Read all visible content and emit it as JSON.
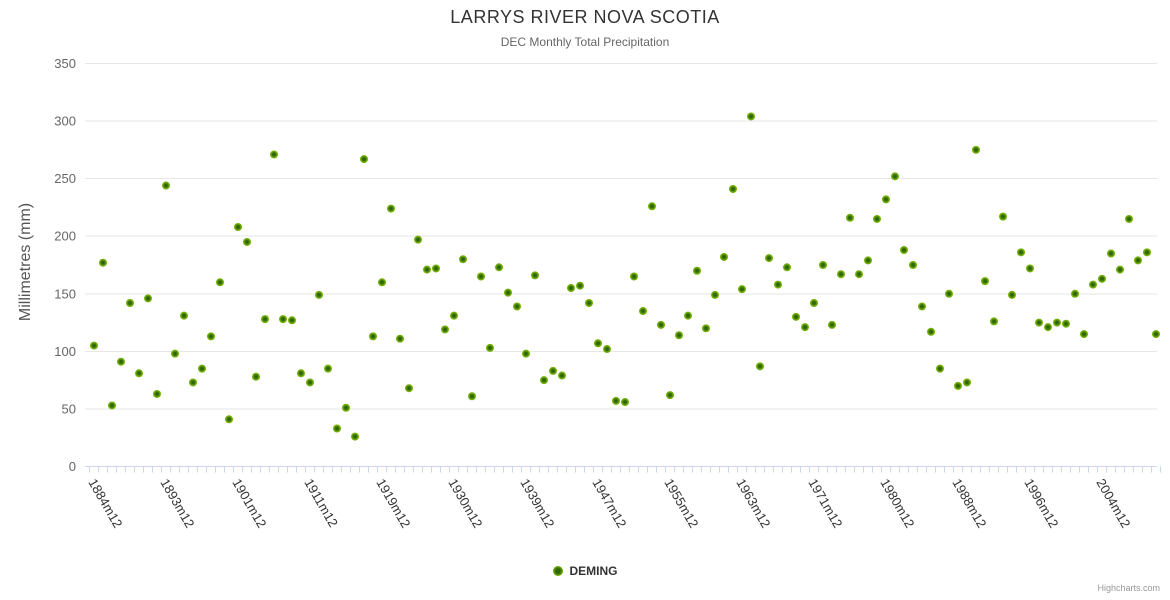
{
  "header": {
    "title": "LARRYS RIVER NOVA SCOTIA",
    "subtitle": "DEC Monthly Total Precipitation"
  },
  "chart_data": {
    "type": "scatter",
    "title": "LARRYS RIVER NOVA SCOTIA",
    "subtitle": "DEC Monthly Total Precipitation",
    "xlabel": "",
    "ylabel": "Millimetres (mm)",
    "ylim": [
      0,
      350
    ],
    "y_ticks": [
      0,
      50,
      100,
      150,
      200,
      250,
      300,
      350
    ],
    "grid": "horizontal-only",
    "legend_position": "bottom-center",
    "n_points": 119,
    "label_step": 8,
    "x_tick_labels": [
      {
        "index": 0,
        "label": "1884m12"
      },
      {
        "index": 8,
        "label": "1893m12"
      },
      {
        "index": 16,
        "label": "1901m12"
      },
      {
        "index": 24,
        "label": "1911m12"
      },
      {
        "index": 32,
        "label": "1919m12"
      },
      {
        "index": 40,
        "label": "1930m12"
      },
      {
        "index": 48,
        "label": "1939m12"
      },
      {
        "index": 56,
        "label": "1947m12"
      },
      {
        "index": 64,
        "label": "1955m12"
      },
      {
        "index": 72,
        "label": "1963m12"
      },
      {
        "index": 80,
        "label": "1971m12"
      },
      {
        "index": 88,
        "label": "1980m12"
      },
      {
        "index": 96,
        "label": "1988m12"
      },
      {
        "index": 104,
        "label": "1996m12"
      },
      {
        "index": 112,
        "label": "2004m12"
      }
    ],
    "series": [
      {
        "name": "DEMING",
        "color": "#74b006",
        "values": [
          105,
          177,
          53,
          91,
          142,
          81,
          146,
          63,
          244,
          98,
          131,
          73,
          85,
          113,
          160,
          41,
          208,
          195,
          78,
          128,
          271,
          128,
          127,
          81,
          73,
          149,
          85,
          33,
          51,
          26,
          267,
          113,
          160,
          224,
          111,
          68,
          197,
          171,
          172,
          119,
          131,
          180,
          61,
          165,
          103,
          173,
          151,
          139,
          98,
          166,
          75,
          83,
          79,
          155,
          157,
          142,
          107,
          102,
          57,
          56,
          165,
          135,
          226,
          123,
          62,
          114,
          131,
          170,
          120,
          149,
          182,
          241,
          154,
          304,
          87,
          181,
          158,
          173,
          130,
          121,
          142,
          175,
          123,
          167,
          216,
          167,
          179,
          215,
          232,
          252,
          188,
          175,
          139,
          117,
          85,
          150,
          70,
          73,
          275,
          161,
          126,
          217,
          149,
          186,
          172,
          125,
          121,
          125,
          124,
          150,
          115,
          158,
          163,
          185,
          171,
          215,
          179,
          186,
          115
        ]
      }
    ]
  },
  "legend": {
    "items": [
      {
        "label": "DEMING",
        "marker": "circle-icon",
        "marker_color": "#74b006"
      }
    ]
  },
  "credits": {
    "text": "Highcharts.com"
  },
  "colors": {
    "marker_fill": "#74b006",
    "marker_core": "#2f6604",
    "grid_line": "#e6e6e6",
    "axis_line": "#ccd6eb",
    "tick_mark": "#ccd6eb",
    "title_color": "#333333",
    "subtitle_color": "#666666",
    "y_axis_label_color": "#666666",
    "x_axis_label_color": "#333333",
    "credits_color": "#999999"
  }
}
